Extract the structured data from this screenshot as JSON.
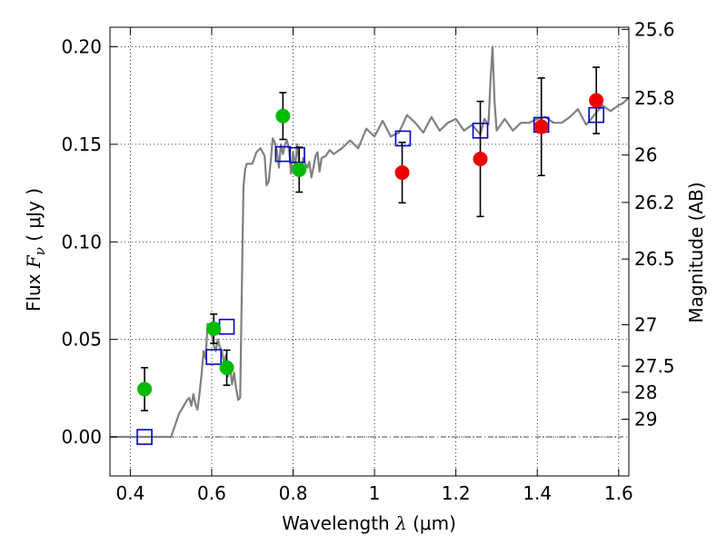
{
  "chart_data": {
    "type": "scatter",
    "xlabel": {
      "prefix": "Wavelength ",
      "symbol": "λ",
      "unit": " (μm)"
    },
    "ylabel": {
      "prefix": "Flux ",
      "symbol": "F",
      "sub": "ν",
      "unit": " ( μJy )"
    },
    "y2label": "Magnitude (AB)",
    "xlim": [
      0.35,
      1.625
    ],
    "ylim": [
      -0.02,
      0.21
    ],
    "grid": true,
    "x_ticks": [
      0.4,
      0.6,
      0.8,
      1.0,
      1.2,
      1.4,
      1.6
    ],
    "x_tick_labels": [
      "0.4",
      "0.6",
      "0.8",
      "1",
      "1.2",
      "1.4",
      "1.6"
    ],
    "y_ticks": [
      0.0,
      0.05,
      0.1,
      0.15,
      0.2
    ],
    "y_tick_labels": [
      "0.00",
      "0.05",
      "0.10",
      "0.15",
      "0.20"
    ],
    "magnitude_ticks": [
      {
        "label": "25.6",
        "flux": 0.2089
      },
      {
        "label": "25.8",
        "flux": 0.1738
      },
      {
        "label": "26",
        "flux": 0.1445
      },
      {
        "label": "26.2",
        "flux": 0.1202
      },
      {
        "label": "26.5",
        "flux": 0.0912
      },
      {
        "label": "27",
        "flux": 0.0575
      },
      {
        "label": "27.5",
        "flux": 0.0363
      },
      {
        "label": "28",
        "flux": 0.0229
      },
      {
        "label": "29",
        "flux": 0.0091
      }
    ],
    "colors": {
      "model": "#808080",
      "green": "#00bb00",
      "red": "#ee0000",
      "squares": "#0000cc",
      "errorbar": "#000000"
    },
    "series": [
      {
        "name": "model SED",
        "kind": "line",
        "x": [
          0.35,
          0.5,
          0.52,
          0.54,
          0.545,
          0.55,
          0.555,
          0.56,
          0.565,
          0.57,
          0.575,
          0.58,
          0.585,
          0.59,
          0.595,
          0.6,
          0.605,
          0.61,
          0.615,
          0.62,
          0.625,
          0.63,
          0.635,
          0.64,
          0.645,
          0.65,
          0.655,
          0.66,
          0.665,
          0.67,
          0.675,
          0.678,
          0.682,
          0.686,
          0.69,
          0.7,
          0.71,
          0.72,
          0.73,
          0.735,
          0.74,
          0.745,
          0.75,
          0.755,
          0.76,
          0.765,
          0.77,
          0.775,
          0.78,
          0.785,
          0.79,
          0.795,
          0.8,
          0.805,
          0.81,
          0.815,
          0.82,
          0.825,
          0.83,
          0.835,
          0.84,
          0.845,
          0.85,
          0.855,
          0.86,
          0.865,
          0.87,
          0.88,
          0.89,
          0.9,
          0.92,
          0.94,
          0.96,
          0.98,
          1.0,
          1.02,
          1.04,
          1.06,
          1.08,
          1.1,
          1.12,
          1.14,
          1.16,
          1.18,
          1.2,
          1.22,
          1.24,
          1.26,
          1.27,
          1.28,
          1.285,
          1.29,
          1.295,
          1.3,
          1.32,
          1.34,
          1.36,
          1.38,
          1.4,
          1.42,
          1.44,
          1.46,
          1.48,
          1.5,
          1.52,
          1.54,
          1.56,
          1.58,
          1.6,
          1.61,
          1.625
        ],
        "y": [
          0.0,
          0.0,
          0.012,
          0.019,
          0.02,
          0.016,
          0.022,
          0.017,
          0.014,
          0.022,
          0.032,
          0.044,
          0.04,
          0.058,
          0.054,
          0.052,
          0.047,
          0.044,
          0.05,
          0.046,
          0.044,
          0.038,
          0.042,
          0.031,
          0.036,
          0.027,
          0.033,
          0.025,
          0.019,
          0.02,
          0.087,
          0.128,
          0.137,
          0.14,
          0.14,
          0.14,
          0.146,
          0.148,
          0.144,
          0.129,
          0.131,
          0.141,
          0.153,
          0.151,
          0.147,
          0.138,
          0.15,
          0.145,
          0.15,
          0.152,
          0.147,
          0.135,
          0.146,
          0.138,
          0.15,
          0.141,
          0.136,
          0.143,
          0.14,
          0.138,
          0.141,
          0.133,
          0.138,
          0.144,
          0.146,
          0.136,
          0.143,
          0.144,
          0.147,
          0.145,
          0.148,
          0.152,
          0.148,
          0.158,
          0.154,
          0.162,
          0.154,
          0.156,
          0.165,
          0.161,
          0.156,
          0.164,
          0.157,
          0.161,
          0.163,
          0.157,
          0.16,
          0.155,
          0.163,
          0.16,
          0.182,
          0.2,
          0.172,
          0.157,
          0.163,
          0.157,
          0.161,
          0.161,
          0.163,
          0.164,
          0.161,
          0.161,
          0.164,
          0.168,
          0.16,
          0.165,
          0.17,
          0.167,
          0.17,
          0.171,
          0.174
        ]
      },
      {
        "name": "photometry (green)",
        "kind": "points",
        "x": [
          0.435,
          0.605,
          0.637,
          0.775,
          0.815
        ],
        "y": [
          0.0245,
          0.0555,
          0.0355,
          0.1645,
          0.137
        ],
        "yerr": [
          0.011,
          0.0075,
          0.009,
          0.012,
          0.0115
        ]
      },
      {
        "name": "photometry (red)",
        "kind": "points",
        "x": [
          1.068,
          1.26,
          1.41,
          1.545
        ],
        "y": [
          0.1355,
          0.1425,
          0.159,
          0.1725
        ],
        "yerr": [
          0.0155,
          0.0295,
          0.025,
          0.017
        ]
      },
      {
        "name": "model bandpass flux",
        "kind": "squares",
        "x": [
          0.435,
          0.605,
          0.637,
          0.775,
          0.81,
          1.07,
          1.26,
          1.41,
          1.545
        ],
        "y": [
          0.0,
          0.041,
          0.0565,
          0.145,
          0.1445,
          0.153,
          0.157,
          0.16,
          0.165
        ]
      }
    ]
  }
}
